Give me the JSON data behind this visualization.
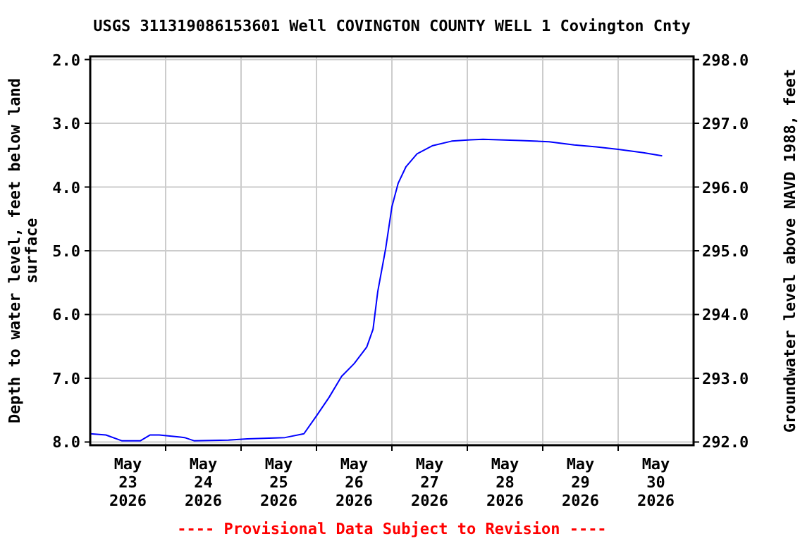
{
  "chart_data": {
    "type": "line",
    "title": "USGS 311319086153601 Well COVINGTON COUNTY WELL 1 Covington Cnty",
    "ylabel": "Depth to water level, feet below land surface",
    "y2label": "Groundwater level above NAVD 1988, feet",
    "annotations": [
      "---- Provisional Data Subject to Revision ----"
    ],
    "xlim": [
      "2026-05-23",
      "2026-05-31"
    ],
    "xticks": [
      {
        "value": "2026-05-23T12:00",
        "label": "May 23 2026"
      },
      {
        "value": "2026-05-24T12:00",
        "label": "May 24 2026"
      },
      {
        "value": "2026-05-25T12:00",
        "label": "May 25 2026"
      },
      {
        "value": "2026-05-26T12:00",
        "label": "May 26 2026"
      },
      {
        "value": "2026-05-27T12:00",
        "label": "May 27 2026"
      },
      {
        "value": "2026-05-28T12:00",
        "label": "May 28 2026"
      },
      {
        "value": "2026-05-29T12:00",
        "label": "May 29 2026"
      },
      {
        "value": "2026-05-30T12:00",
        "label": "May 30 2026"
      },
      {
        "value": "2026-05-24",
        "label": null
      },
      {
        "value": "2026-05-25",
        "label": null
      },
      {
        "value": "2026-05-26",
        "label": null
      },
      {
        "value": "2026-05-27",
        "label": null
      },
      {
        "value": "2026-05-28",
        "label": null
      },
      {
        "value": "2026-05-29",
        "label": null
      },
      {
        "value": "2026-05-30",
        "label": null
      }
    ],
    "ylim": [
      8.05,
      1.95
    ],
    "yticks": [
      {
        "value": 2,
        "label": "2.0"
      },
      {
        "value": 3,
        "label": "3.0"
      },
      {
        "value": 4,
        "label": "4.0"
      },
      {
        "value": 5,
        "label": "5.0"
      },
      {
        "value": 6,
        "label": "6.0"
      },
      {
        "value": 7,
        "label": "7.0"
      },
      {
        "value": 8,
        "label": "8.0"
      }
    ],
    "y2lim": [
      291.95,
      298.05
    ],
    "y2ticks": [
      {
        "value": 292,
        "label": "292.0"
      },
      {
        "value": 293,
        "label": "293.0"
      },
      {
        "value": 294,
        "label": "294.0"
      },
      {
        "value": 295,
        "label": "295.0"
      },
      {
        "value": 296,
        "label": "296.0"
      },
      {
        "value": 297,
        "label": "297.0"
      },
      {
        "value": 298,
        "label": "298.0"
      }
    ],
    "grid": true,
    "series": [
      {
        "color": "#0000ff",
        "x": [
          "2026-05-23T00:00",
          "2026-05-23T05:00",
          "2026-05-23T10:00",
          "2026-05-23T16:00",
          "2026-05-23T19:00",
          "2026-05-23T22:00",
          "2026-05-24T06:00",
          "2026-05-24T09:00",
          "2026-05-24T20:00",
          "2026-05-25T02:00",
          "2026-05-25T14:00",
          "2026-05-25T20:00",
          "2026-05-26T00:00",
          "2026-05-26T04:00",
          "2026-05-26T08:00",
          "2026-05-26T12:00",
          "2026-05-26T16:00",
          "2026-05-26T18:00",
          "2026-05-26T19:30",
          "2026-05-26T22:00",
          "2026-05-27T00:00",
          "2026-05-27T02:00",
          "2026-05-27T04:30",
          "2026-05-27T08:00",
          "2026-05-27T13:00",
          "2026-05-27T19:00",
          "2026-05-28T01:00",
          "2026-05-28T05:00",
          "2026-05-28T17:00",
          "2026-05-29T02:00",
          "2026-05-29T10:00",
          "2026-05-29T17:00",
          "2026-05-30T00:00",
          "2026-05-30T08:00",
          "2026-05-30T14:00"
        ],
        "values": [
          7.87,
          7.89,
          7.98,
          7.98,
          7.89,
          7.89,
          7.93,
          7.98,
          7.97,
          7.95,
          7.93,
          7.87,
          7.59,
          7.3,
          6.97,
          6.77,
          6.51,
          6.23,
          5.64,
          4.97,
          4.31,
          3.94,
          3.68,
          3.48,
          3.35,
          3.28,
          3.26,
          3.25,
          3.27,
          3.29,
          3.34,
          3.37,
          3.41,
          3.46,
          3.51
        ]
      }
    ]
  }
}
